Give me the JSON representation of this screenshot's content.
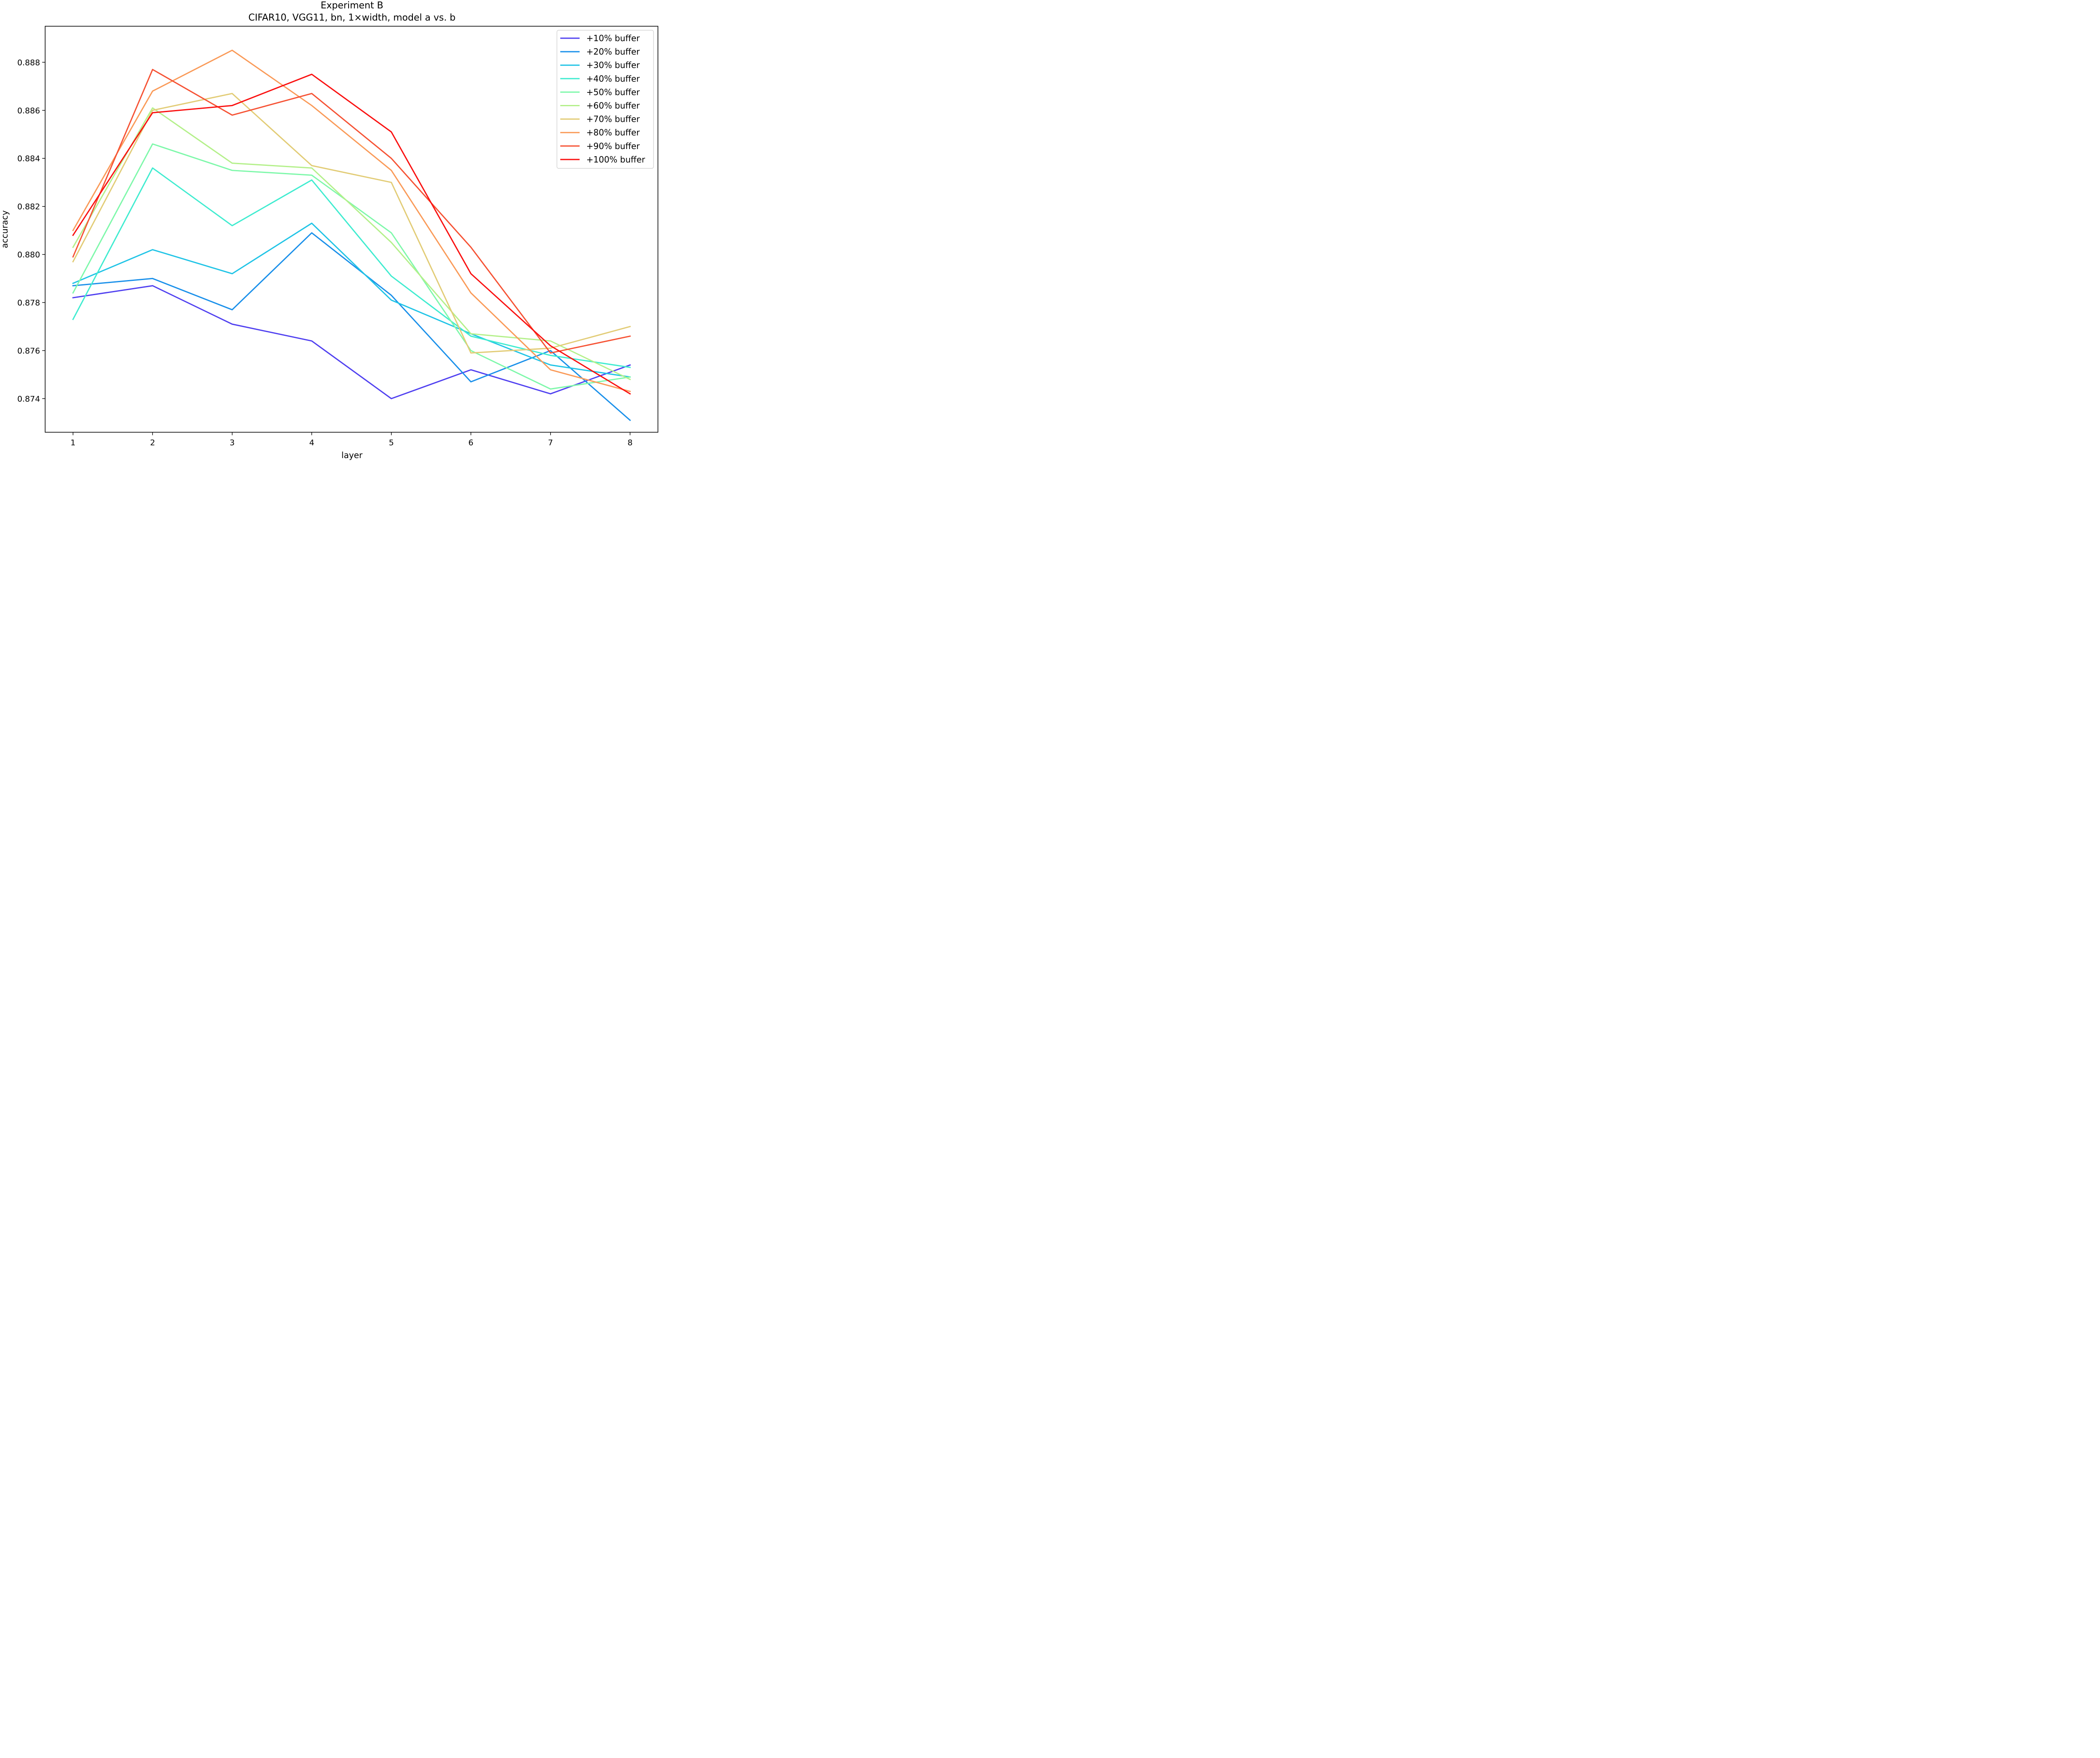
{
  "chart_data": {
    "type": "line",
    "title": "Experiment B",
    "subtitle": "CIFAR10, VGG11, bn, 1×width, model a vs. b",
    "xlabel": "layer",
    "ylabel": "accuracy",
    "x": [
      1,
      2,
      3,
      4,
      5,
      6,
      7,
      8
    ],
    "xticks": [
      "1",
      "2",
      "3",
      "4",
      "5",
      "6",
      "7",
      "8"
    ],
    "xlim": [
      0.65,
      8.35
    ],
    "yticks": [
      "0.874",
      "0.876",
      "0.878",
      "0.880",
      "0.882",
      "0.884",
      "0.886",
      "0.888"
    ],
    "ylim": [
      0.8726,
      0.8895
    ],
    "grid": false,
    "legend_position": "top-right",
    "series": [
      {
        "name": "+10% buffer",
        "color": "#5040f0",
        "values": [
          0.8782,
          0.8787,
          0.8771,
          0.8764,
          0.874,
          0.8752,
          0.8742,
          0.8754
        ]
      },
      {
        "name": "+20% buffer",
        "color": "#1a90ea",
        "values": [
          0.8787,
          0.879,
          0.8777,
          0.8809,
          0.8783,
          0.8747,
          0.876,
          0.8731
        ]
      },
      {
        "name": "+30% buffer",
        "color": "#20c4e6",
        "values": [
          0.8788,
          0.8802,
          0.8792,
          0.8813,
          0.8781,
          0.8767,
          0.8754,
          0.8749
        ]
      },
      {
        "name": "+40% buffer",
        "color": "#40ecd0",
        "values": [
          0.8773,
          0.8836,
          0.8812,
          0.8831,
          0.8791,
          0.8766,
          0.8758,
          0.8753
        ]
      },
      {
        "name": "+50% buffer",
        "color": "#7ef8aa",
        "values": [
          0.8784,
          0.8846,
          0.8835,
          0.8833,
          0.8809,
          0.876,
          0.8744,
          0.8749
        ]
      },
      {
        "name": "+60% buffer",
        "color": "#b4f08a",
        "values": [
          0.8803,
          0.8861,
          0.8838,
          0.8836,
          0.8805,
          0.8767,
          0.8764,
          0.8748
        ]
      },
      {
        "name": "+70% buffer",
        "color": "#e2cc76",
        "values": [
          0.8797,
          0.886,
          0.8867,
          0.8837,
          0.883,
          0.8759,
          0.8761,
          0.877
        ]
      },
      {
        "name": "+80% buffer",
        "color": "#fa9a58",
        "values": [
          0.881,
          0.8868,
          0.8885,
          0.8862,
          0.8835,
          0.8784,
          0.8752,
          0.8743
        ]
      },
      {
        "name": "+90% buffer",
        "color": "#f65234",
        "values": [
          0.8799,
          0.8877,
          0.8858,
          0.8867,
          0.884,
          0.8803,
          0.8759,
          0.8766
        ]
      },
      {
        "name": "+100% buffer",
        "color": "#fa1010",
        "values": [
          0.8808,
          0.8859,
          0.8862,
          0.8875,
          0.8851,
          0.8792,
          0.8762,
          0.8742
        ]
      }
    ]
  }
}
